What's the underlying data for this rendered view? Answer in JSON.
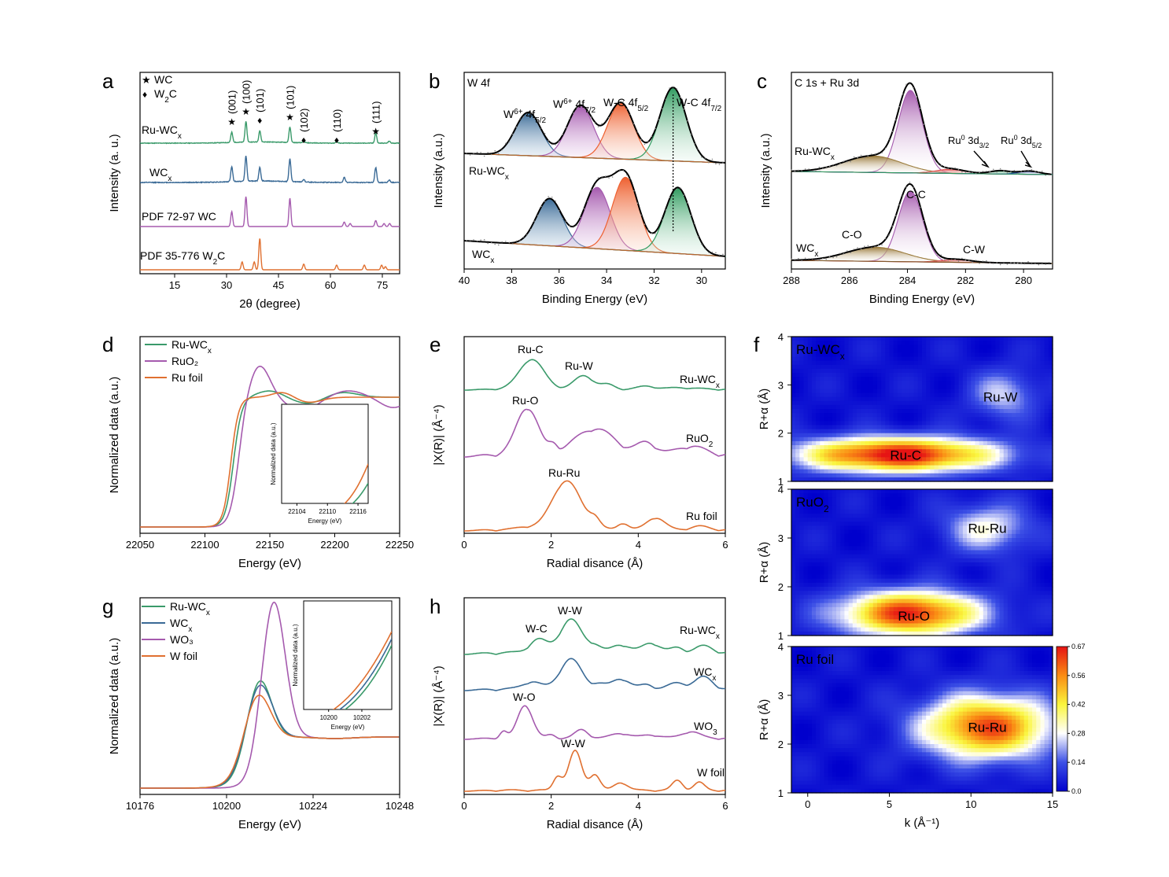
{
  "panels": {
    "a": {
      "letter": "a",
      "legend": [
        {
          "symbol": "★",
          "label": "WC",
          "color": "#cc2222"
        },
        {
          "symbol": "♦",
          "label": "W₂C",
          "color": "#000000"
        }
      ]
    },
    "b": {
      "letter": "b",
      "title": "W 4f"
    },
    "c": {
      "letter": "c",
      "title": "C 1s + Ru 3d"
    },
    "d": {
      "letter": "d"
    },
    "e": {
      "letter": "e"
    },
    "f": {
      "letter": "f"
    },
    "g": {
      "letter": "g"
    },
    "h": {
      "letter": "h"
    }
  },
  "chart_data": [
    {
      "id": "a",
      "type": "line",
      "xlabel": "2θ (degree)",
      "ylabel": "Intensity (a. u.)",
      "xlim": [
        5,
        80
      ],
      "xticks": [
        "15",
        "30",
        "45",
        "60",
        "75"
      ],
      "xtick_values": [
        15,
        30,
        45,
        60,
        75
      ],
      "series": [
        {
          "name": "Ru-WCx",
          "color": "#3a9a6a",
          "peaks": [
            [
              31.5,
              0.5
            ],
            [
              35.6,
              1.0
            ],
            [
              39.6,
              0.55
            ],
            [
              48.3,
              0.75
            ],
            [
              52.3,
              0.1
            ],
            [
              61.8,
              0.08
            ],
            [
              73.1,
              0.5
            ],
            [
              77.0,
              0.1
            ]
          ]
        },
        {
          "name": "WCx",
          "color": "#3a6a96",
          "peaks": [
            [
              31.5,
              0.6
            ],
            [
              35.6,
              1.0
            ],
            [
              39.6,
              0.55
            ],
            [
              48.3,
              0.9
            ],
            [
              52.3,
              0.1
            ],
            [
              64.0,
              0.2
            ],
            [
              73.1,
              0.6
            ],
            [
              77.0,
              0.1
            ]
          ]
        },
        {
          "name": "PDF 72-97 WC",
          "color": "#a55aae",
          "peaks": [
            [
              31.5,
              0.5
            ],
            [
              35.6,
              1.0
            ],
            [
              48.3,
              0.95
            ],
            [
              64.0,
              0.15
            ],
            [
              65.7,
              0.1
            ],
            [
              73.1,
              0.2
            ],
            [
              75.5,
              0.1
            ],
            [
              77.1,
              0.1
            ]
          ]
        },
        {
          "name": "PDF 35-776 W₂C",
          "color": "#e07030",
          "peaks": [
            [
              34.5,
              0.25
            ],
            [
              38.0,
              0.25
            ],
            [
              39.6,
              1.0
            ],
            [
              52.3,
              0.18
            ],
            [
              61.8,
              0.15
            ],
            [
              69.8,
              0.15
            ],
            [
              74.8,
              0.15
            ],
            [
              75.9,
              0.1
            ]
          ]
        }
      ],
      "annotations": [
        {
          "text": "(001)",
          "x": 31.5,
          "marker": "★"
        },
        {
          "text": "(100)",
          "x": 35.6,
          "marker": "★"
        },
        {
          "text": "(101)",
          "x": 39.6,
          "marker": "♦"
        },
        {
          "text": "(101)",
          "x": 48.3,
          "marker": "★"
        },
        {
          "text": "(102)",
          "x": 52.3,
          "marker": "♦"
        },
        {
          "text": "(110)",
          "x": 61.8,
          "marker": "♦"
        },
        {
          "text": "(111)",
          "x": 73.1,
          "marker": "★"
        }
      ]
    },
    {
      "id": "b",
      "type": "line",
      "xlabel": "Binding Energy (eV)",
      "ylabel": "Intensity (a.u.)",
      "xlim": [
        40,
        29
      ],
      "xticks": [
        "40",
        "38",
        "36",
        "34",
        "32",
        "30"
      ],
      "xtick_values": [
        40,
        38,
        36,
        34,
        32,
        30
      ],
      "components": [
        "W⁶⁺ 4f5/2",
        "W⁶⁺ 4f7/2",
        "W-C 4f5/2",
        "W-C 4f7/2"
      ],
      "dotted_line_x": 31.2,
      "series": [
        {
          "name": "Ru-WCx",
          "peaks": [
            [
              37.3,
              1.0
            ],
            [
              35.1,
              1.2
            ],
            [
              33.4,
              1.3
            ],
            [
              31.2,
              1.7
            ]
          ]
        },
        {
          "name": "WCx",
          "peaks": [
            [
              36.4,
              1.0
            ],
            [
              34.4,
              1.3
            ],
            [
              33.2,
              1.55
            ],
            [
              31.0,
              1.4
            ]
          ]
        }
      ]
    },
    {
      "id": "c",
      "type": "line",
      "xlabel": "Binding Energy (eV)",
      "ylabel": "Intensity (a.u.)",
      "xlim": [
        288,
        279
      ],
      "xticks": [
        "288",
        "286",
        "284",
        "282",
        "280"
      ],
      "xtick_values": [
        288,
        286,
        284,
        282,
        280
      ],
      "series": [
        {
          "name": "Ru-WCx",
          "labels": [
            "Ru⁰ 3d3/2",
            "Ru⁰ 3d5/2"
          ],
          "peaks": [
            [
              283.9,
              1.0
            ],
            [
              285.2,
              0.2
            ],
            [
              282.5,
              0.05
            ],
            [
              280.8,
              0.04
            ],
            [
              279.8,
              0.04
            ]
          ]
        },
        {
          "name": "WCx",
          "labels": [
            "C-C",
            "C-O",
            "C-W"
          ],
          "peaks": [
            [
              283.9,
              1.0
            ],
            [
              285.1,
              0.2
            ],
            [
              282.3,
              0.04
            ]
          ]
        }
      ]
    },
    {
      "id": "d",
      "type": "line",
      "xlabel": "Energy (eV)",
      "ylabel": "Normalized data (a.u.)",
      "xlim": [
        22050,
        22250
      ],
      "xticks": [
        "22050",
        "22100",
        "22150",
        "22200",
        "22250"
      ],
      "xtick_values": [
        22050,
        22100,
        22150,
        22200,
        22250
      ],
      "series": [
        {
          "name": "Ru-WCx",
          "color": "#3a9a6a"
        },
        {
          "name": "RuO₂",
          "color": "#a55aae"
        },
        {
          "name": "Ru foil",
          "color": "#e07030"
        }
      ],
      "inset": {
        "xlabel": "Energy (eV)",
        "ylabel": "Normalized data (a.u.)",
        "xticks": [
          "22104",
          "22110",
          "22116"
        ],
        "xtick_values": [
          22104,
          22110,
          22116
        ],
        "xlim": [
          22101,
          22118
        ]
      }
    },
    {
      "id": "e",
      "type": "line",
      "xlabel": "Radial disance (Å)",
      "ylabel": "|X(R)| (Å⁻⁴)",
      "xlim": [
        0,
        6
      ],
      "xticks": [
        "0",
        "2",
        "4",
        "6"
      ],
      "xtick_values": [
        0,
        2,
        4,
        6
      ],
      "series": [
        {
          "name": "Ru-WCx",
          "color": "#3a9a6a",
          "peak_labels": [
            {
              "text": "Ru-C",
              "x": 1.55
            },
            {
              "text": "Ru-W",
              "x": 2.75
            }
          ]
        },
        {
          "name": "RuO₂",
          "color": "#a55aae",
          "peak_labels": [
            {
              "text": "Ru-O",
              "x": 1.45
            }
          ]
        },
        {
          "name": "Ru foil",
          "color": "#e07030",
          "peak_labels": [
            {
              "text": "Ru-Ru",
              "x": 2.35
            }
          ]
        }
      ]
    },
    {
      "id": "f",
      "type": "heatmap",
      "xlabel": "k (Å⁻¹)",
      "ylabel": "R+α (Å)",
      "xlim": [
        -1,
        15
      ],
      "ylim": [
        1,
        4
      ],
      "xticks": [
        "0",
        "5",
        "10",
        "15"
      ],
      "xtick_values": [
        0,
        5,
        10,
        15
      ],
      "yticks": [
        "1",
        "2",
        "3",
        "4"
      ],
      "ytick_values": [
        1,
        2,
        3,
        4
      ],
      "colorbar": {
        "ticks": [
          "0.0",
          "0.14",
          "0.28",
          "0.42",
          "0.56",
          "0.67"
        ],
        "min": 0,
        "max": 0.67
      },
      "subplots": [
        {
          "name": "Ru-WCx",
          "labels": [
            {
              "text": "Ru-C",
              "k": 6.0,
              "r": 1.55
            },
            {
              "text": "Ru-W",
              "k": 11.8,
              "r": 2.75
            }
          ],
          "blobs": [
            [
              5.5,
              1.55,
              4.2,
              0.25,
              0.67
            ],
            [
              12.0,
              2.8,
              1.4,
              0.35,
              0.2
            ]
          ]
        },
        {
          "name": "RuO₂",
          "labels": [
            {
              "text": "Ru-O",
              "k": 6.5,
              "r": 1.4
            },
            {
              "text": "Ru-Ru",
              "k": 11.0,
              "r": 3.2
            }
          ],
          "blobs": [
            [
              6.3,
              1.45,
              3.0,
              0.32,
              0.62
            ],
            [
              11.0,
              3.2,
              1.8,
              0.35,
              0.25
            ]
          ]
        },
        {
          "name": "Ru foil",
          "labels": [
            {
              "text": "Ru-Ru",
              "k": 11.0,
              "r": 2.35
            }
          ],
          "blobs": [
            [
              11.0,
              2.35,
              2.8,
              0.45,
              0.58
            ]
          ]
        }
      ]
    },
    {
      "id": "g",
      "type": "line",
      "xlabel": "Energy (eV)",
      "ylabel": "Normalized data (a.u.)",
      "xlim": [
        10176,
        10248
      ],
      "xticks": [
        "10176",
        "10200",
        "10224",
        "10248"
      ],
      "xtick_values": [
        10176,
        10200,
        10224,
        10248
      ],
      "series": [
        {
          "name": "Ru-WCx",
          "color": "#3a9a6a"
        },
        {
          "name": "WCx",
          "color": "#3a6a96"
        },
        {
          "name": "WO₃",
          "color": "#a55aae"
        },
        {
          "name": "W foil",
          "color": "#e07030"
        }
      ],
      "inset": {
        "xlabel": "Energy (eV)",
        "ylabel": "Normalized data (a.u.)",
        "xticks": [
          "10200",
          "10202"
        ],
        "xtick_values": [
          10200,
          10202
        ],
        "xlim": [
          10198.5,
          10203.8
        ]
      }
    },
    {
      "id": "h",
      "type": "line",
      "xlabel": "Radial disance (Å)",
      "ylabel": "|X(R)| (Å⁻⁴)",
      "xlim": [
        0,
        6
      ],
      "xticks": [
        "0",
        "2",
        "4",
        "6"
      ],
      "xtick_values": [
        0,
        2,
        4,
        6
      ],
      "series": [
        {
          "name": "Ru-WCx",
          "color": "#3a9a6a",
          "peak_labels": [
            {
              "text": "W-C",
              "x": 1.7
            },
            {
              "text": "W-W",
              "x": 2.45
            }
          ]
        },
        {
          "name": "WCx",
          "color": "#3a6a96",
          "peak_labels": []
        },
        {
          "name": "WO₃",
          "color": "#a55aae",
          "peak_labels": [
            {
              "text": "W-O",
              "x": 1.4
            }
          ]
        },
        {
          "name": "W foil",
          "color": "#e07030",
          "peak_labels": [
            {
              "text": "W-W",
              "x": 2.55
            }
          ]
        }
      ]
    }
  ]
}
